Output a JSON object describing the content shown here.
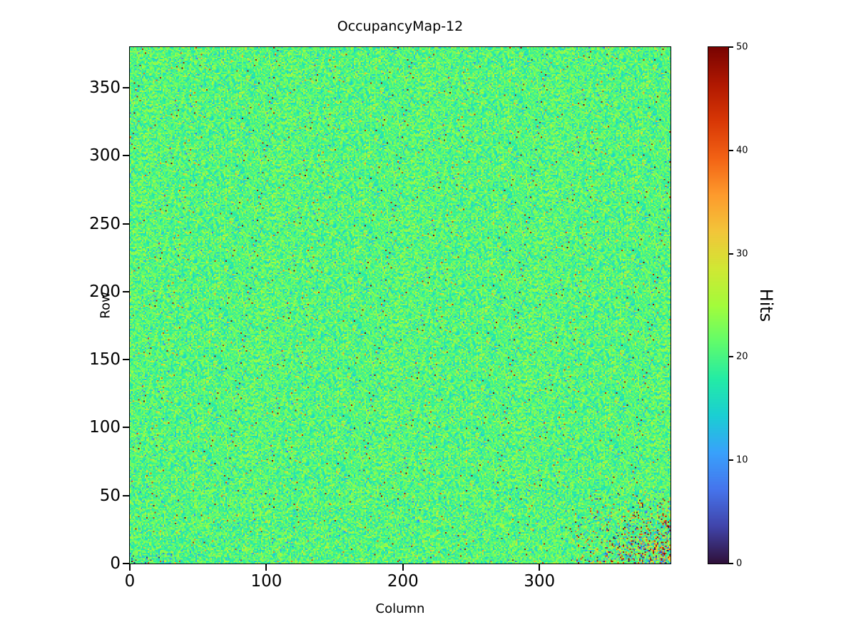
{
  "title": "OccupancyMap-12",
  "chart_data": {
    "type": "heatmap",
    "title": "OccupancyMap-12",
    "xlabel": "Column",
    "ylabel": "Row",
    "colorbar_label": "Hits",
    "x_range": [
      0,
      396
    ],
    "y_range": [
      0,
      380
    ],
    "zlim": [
      0,
      50
    ],
    "x_ticks": [
      0,
      100,
      200,
      300
    ],
    "y_ticks": [
      0,
      50,
      100,
      150,
      200,
      250,
      300,
      350
    ],
    "colorbar_ticks": [
      0,
      10,
      20,
      30,
      40,
      50
    ],
    "grid": false,
    "colormap": "turbo",
    "colormap_stops": [
      "#30123b",
      "#4145ab",
      "#4675ed",
      "#39a2fc",
      "#1bcfd4",
      "#24eca6",
      "#61fc6c",
      "#a4fc3b",
      "#d1e834",
      "#f3c63a",
      "#fe9b2d",
      "#f36315",
      "#d93806",
      "#b11901",
      "#7a0402"
    ],
    "data_summary": {
      "description": "Dense per-pixel detector occupancy map, roughly uniform around 20 hits with random hot (orange/red) and cold (cyan/blue) pixels; a high-variance noisy cluster spanning the full 0-50 range in the bottom-right corner and a small noisy patch at the bottom-left corner.",
      "baseline_mean_hits": 20.5,
      "baseline_std_hits": 3.2,
      "hot_pixel_fraction": 0.012,
      "hot_pixel_hits_range": [
        30,
        50
      ],
      "cold_pixel_fraction": 0.01,
      "cold_pixel_hits_range": [
        6,
        16
      ],
      "noisy_region": {
        "col_min": 320,
        "col_max": 396,
        "row_min": 0,
        "row_max": 55,
        "hits_range": [
          0,
          50
        ]
      },
      "corner_patch": {
        "col_max": 30,
        "row_max": 7,
        "hits_range": [
          0,
          20
        ]
      },
      "seed": 12
    }
  }
}
